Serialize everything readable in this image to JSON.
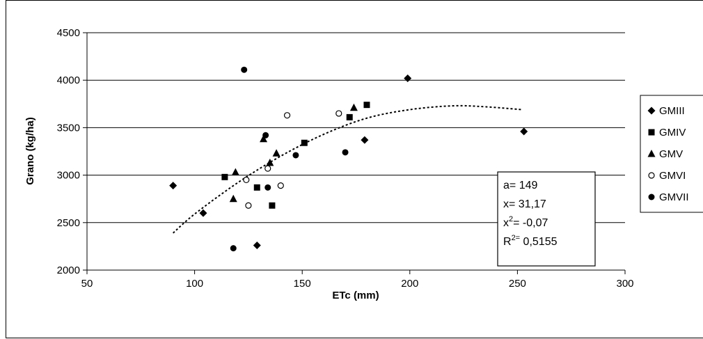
{
  "chart_data": {
    "type": "scatter",
    "title": "",
    "xlabel": "ETc (mm)",
    "ylabel": "Grano (kg/ha)",
    "xlim": [
      50,
      300
    ],
    "ylim": [
      2000,
      4500
    ],
    "xticks": [
      "50",
      "100",
      "150",
      "200",
      "250",
      "300"
    ],
    "yticks": [
      "2000",
      "2500",
      "3000",
      "3500",
      "4000",
      "4500"
    ],
    "grid": "horizontal",
    "legend_position": "right",
    "series": [
      {
        "name": "GMIII",
        "marker": "diamond",
        "points": [
          [
            90,
            2890
          ],
          [
            104,
            2600
          ],
          [
            129,
            2260
          ],
          [
            179,
            3370
          ],
          [
            199,
            4020
          ],
          [
            253,
            3460
          ]
        ]
      },
      {
        "name": "GMIV",
        "marker": "square",
        "points": [
          [
            114,
            2980
          ],
          [
            129,
            2870
          ],
          [
            136,
            2680
          ],
          [
            151,
            3340
          ],
          [
            172,
            3610
          ],
          [
            180,
            3740
          ]
        ]
      },
      {
        "name": "GMV",
        "marker": "triangle",
        "points": [
          [
            118,
            2750
          ],
          [
            119,
            3030
          ],
          [
            132,
            3380
          ],
          [
            135,
            3130
          ],
          [
            138,
            3230
          ],
          [
            174,
            3710
          ]
        ]
      },
      {
        "name": "GMVI",
        "marker": "circle-open",
        "points": [
          [
            124,
            2950
          ],
          [
            125,
            2680
          ],
          [
            134,
            3070
          ],
          [
            140,
            2890
          ],
          [
            143,
            3630
          ],
          [
            167,
            3650
          ]
        ]
      },
      {
        "name": "GMVII",
        "marker": "circle-filled",
        "points": [
          [
            118,
            2230
          ],
          [
            123,
            4110
          ],
          [
            133,
            3420
          ],
          [
            134,
            2870
          ],
          [
            147,
            3210
          ],
          [
            170,
            3240
          ]
        ]
      }
    ],
    "trendline": {
      "style": "dotted",
      "points": [
        [
          90,
          2390
        ],
        [
          100,
          2590
        ],
        [
          120,
          2920
        ],
        [
          140,
          3200
        ],
        [
          160,
          3430
        ],
        [
          180,
          3600
        ],
        [
          200,
          3690
        ],
        [
          220,
          3730
        ],
        [
          235,
          3720
        ],
        [
          252,
          3690
        ]
      ]
    },
    "annotation_box": {
      "lines": [
        {
          "text": "a= 149"
        },
        {
          "text": "x= 31,17"
        },
        {
          "pre": "x",
          "sup": "2",
          "post": "= -0,07"
        },
        {
          "pre": "R",
          "sup": "2=",
          "post": " 0,5155"
        }
      ]
    }
  }
}
